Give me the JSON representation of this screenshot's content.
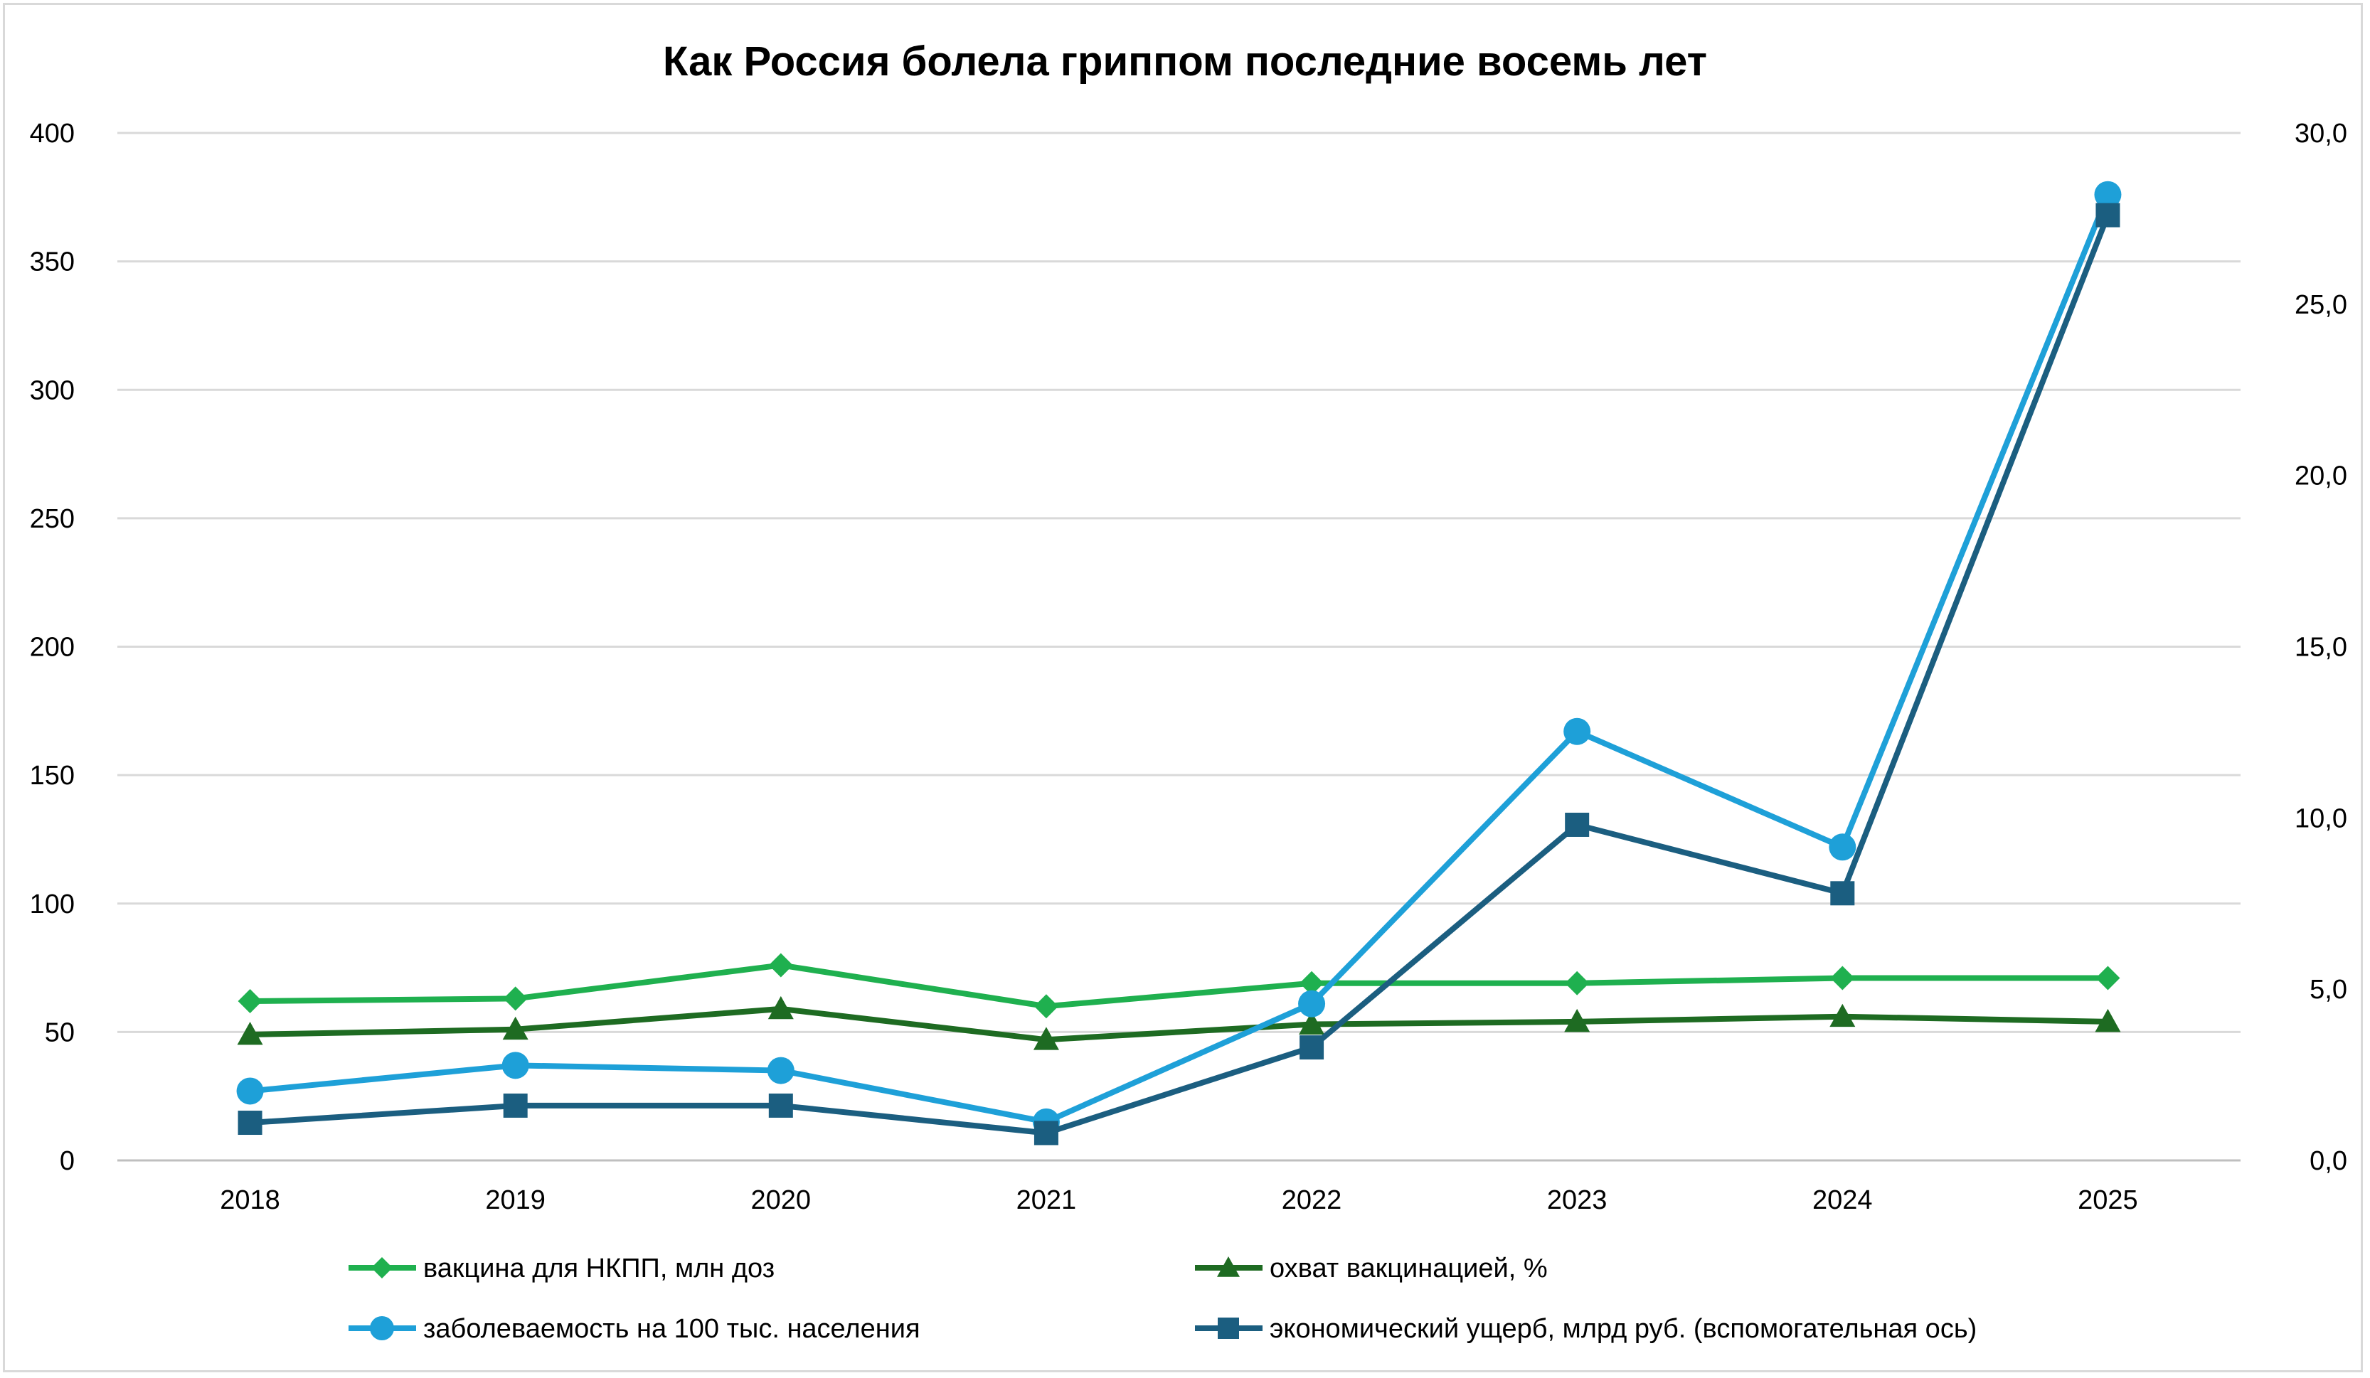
{
  "chart_data": {
    "type": "line",
    "title": "Как Россия болела гриппом  последние восемь лет",
    "categories": [
      "2018",
      "2019",
      "2020",
      "2021",
      "2022",
      "2023",
      "2024",
      "2025"
    ],
    "y_left": {
      "ylim": [
        0,
        400
      ],
      "ticks": [
        "0",
        "50",
        "100",
        "150",
        "200",
        "250",
        "300",
        "350",
        "400"
      ]
    },
    "y_right": {
      "ylim": [
        0,
        30
      ],
      "ticks": [
        "0,0",
        "5,0",
        "10,0",
        "15,0",
        "20,0",
        "25,0",
        "30,0"
      ]
    },
    "grid": true,
    "legend_position": "bottom",
    "series": [
      {
        "name": "вакцина для НКПП, млн доз",
        "axis": "left",
        "marker": "diamond",
        "color": "#1fb04f",
        "values": [
          62,
          63,
          76,
          60,
          69,
          69,
          71,
          71
        ]
      },
      {
        "name": "охват вакцинацией, %",
        "axis": "left",
        "marker": "triangle",
        "color": "#1e6b22",
        "values": [
          49,
          51,
          59,
          47,
          53,
          54,
          56,
          54
        ]
      },
      {
        "name": "заболеваемость на 100 тыс. населения",
        "axis": "left",
        "marker": "circle",
        "color": "#1ea0d8",
        "values": [
          27,
          37,
          35,
          15,
          61,
          167,
          122,
          376
        ]
      },
      {
        "name": "экономический ущерб, млрд руб. (вспомогательная ось)",
        "axis": "right",
        "marker": "square",
        "color": "#1b5e80",
        "values": [
          1.1,
          1.6,
          1.6,
          0.8,
          3.3,
          9.8,
          7.8,
          27.6
        ]
      }
    ]
  }
}
